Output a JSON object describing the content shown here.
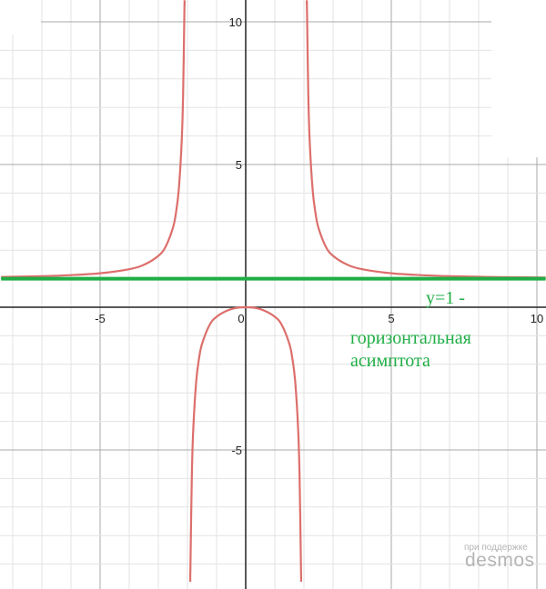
{
  "chart_data": {
    "type": "line",
    "xlim": [
      -8.4,
      10.3
    ],
    "ylim": [
      -9.9,
      10.8
    ],
    "grid": true,
    "minor_grid_step": 1,
    "major_grid_step": 5,
    "x_ticks": [
      "-5",
      "0",
      "5",
      "10"
    ],
    "x_tick_values": [
      -5,
      0,
      5,
      10
    ],
    "y_ticks": [
      "10",
      "5",
      "-5"
    ],
    "y_tick_values": [
      10,
      5,
      -5
    ],
    "series": [
      {
        "color": "#dc6f6c",
        "points": [
          [
            -8.4,
            1.06
          ],
          [
            -7,
            1.089
          ],
          [
            -6,
            1.125
          ],
          [
            -5,
            1.19
          ],
          [
            -4,
            1.333
          ],
          [
            -3.5,
            1.485
          ],
          [
            -3,
            1.8
          ],
          [
            -2.75,
            2.123
          ],
          [
            -2.5,
            2.778
          ],
          [
            -2.4,
            3.273
          ],
          [
            -2.3,
            4.101
          ],
          [
            -2.2,
            5.762
          ],
          [
            -2.15,
            7.426
          ],
          [
            -2.1,
            10.756
          ],
          [
            -2.08,
            12.5
          ]
        ]
      },
      {
        "color": "#dc6f6c",
        "points": [
          [
            -1.93,
            -13.3
          ],
          [
            -1.9,
            -9.256
          ],
          [
            -1.85,
            -5.926
          ],
          [
            -1.8,
            -4.263
          ],
          [
            -1.7,
            -2.604
          ],
          [
            -1.6,
            -1.778
          ],
          [
            -1.5,
            -1.286
          ],
          [
            -1.25,
            -0.641
          ],
          [
            -1,
            -0.333
          ],
          [
            -0.5,
            -0.067
          ],
          [
            0,
            0
          ],
          [
            0.5,
            -0.067
          ],
          [
            1,
            -0.333
          ],
          [
            1.25,
            -0.641
          ],
          [
            1.5,
            -1.286
          ],
          [
            1.6,
            -1.778
          ],
          [
            1.7,
            -2.604
          ],
          [
            1.8,
            -4.263
          ],
          [
            1.85,
            -5.926
          ],
          [
            1.9,
            -9.256
          ],
          [
            1.93,
            -13.3
          ]
        ]
      },
      {
        "color": "#dc6f6c",
        "points": [
          [
            2.08,
            12.5
          ],
          [
            2.1,
            10.756
          ],
          [
            2.15,
            7.426
          ],
          [
            2.2,
            5.762
          ],
          [
            2.3,
            4.101
          ],
          [
            2.4,
            3.273
          ],
          [
            2.5,
            2.778
          ],
          [
            2.75,
            2.123
          ],
          [
            3,
            1.8
          ],
          [
            3.5,
            1.485
          ],
          [
            4,
            1.333
          ],
          [
            5,
            1.19
          ],
          [
            6,
            1.125
          ],
          [
            7,
            1.089
          ],
          [
            8,
            1.067
          ],
          [
            9,
            1.052
          ],
          [
            10.3,
            1.039
          ]
        ]
      },
      {
        "color": "#1fae45",
        "points": [
          [
            -8.4,
            1
          ],
          [
            10.3,
            1
          ]
        ]
      }
    ],
    "annotation": [
      "y=1 -",
      "горизонтальная",
      "асимптота"
    ]
  },
  "watermark": {
    "line1": "при поддержке",
    "line2": "desmos"
  }
}
